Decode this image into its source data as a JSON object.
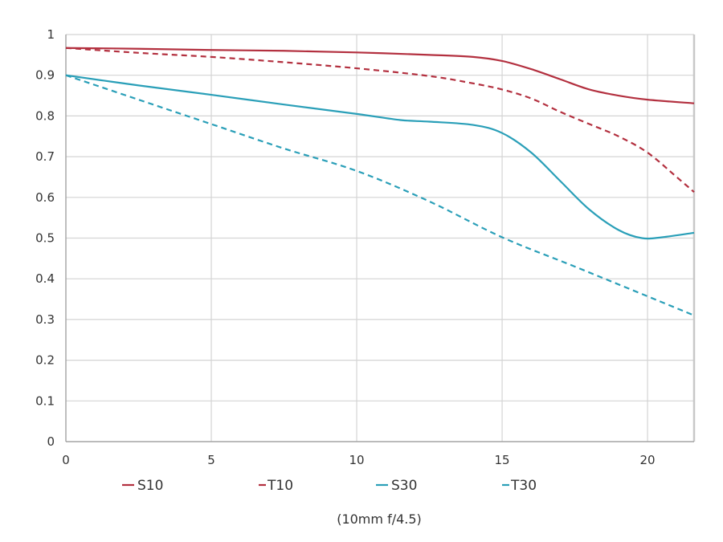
{
  "chart_data": {
    "type": "line",
    "title": "",
    "subtitle": "(10mm f/4.5)",
    "xlabel": "",
    "ylabel": "",
    "xlim": [
      0,
      21.6
    ],
    "ylim": [
      0,
      1
    ],
    "grid": true,
    "legend_position": "bottom",
    "xticks": [
      "0",
      "5",
      "10",
      "15",
      "20"
    ],
    "yticks": [
      "0",
      "0.1",
      "0.2",
      "0.3",
      "0.4",
      "0.5",
      "0.6",
      "0.7",
      "0.8",
      "0.9",
      "1"
    ],
    "series": [
      {
        "name": "S10",
        "color": "#b3303f",
        "dash": false,
        "x": [
          0,
          2.5,
          5,
          7.5,
          10,
          12.5,
          14,
          15,
          16,
          17,
          18,
          19,
          20,
          21.6
        ],
        "y": [
          0.967,
          0.965,
          0.962,
          0.96,
          0.956,
          0.95,
          0.945,
          0.935,
          0.915,
          0.89,
          0.865,
          0.85,
          0.84,
          0.831
        ]
      },
      {
        "name": "T10",
        "color": "#b3303f",
        "dash": true,
        "x": [
          0,
          2.5,
          5,
          7.5,
          10,
          12.5,
          14,
          15,
          16,
          17,
          18,
          19,
          20,
          21,
          21.6
        ],
        "y": [
          0.967,
          0.955,
          0.945,
          0.932,
          0.917,
          0.898,
          0.88,
          0.865,
          0.843,
          0.81,
          0.78,
          0.75,
          0.71,
          0.65,
          0.613
        ]
      },
      {
        "name": "S30",
        "color": "#2a9fb8",
        "dash": false,
        "x": [
          0,
          2.5,
          5,
          7.5,
          10,
          11.5,
          12.5,
          14,
          15,
          16,
          17,
          18,
          19,
          19.8,
          20.5,
          21.6
        ],
        "y": [
          0.9,
          0.875,
          0.852,
          0.828,
          0.805,
          0.79,
          0.786,
          0.778,
          0.758,
          0.71,
          0.64,
          0.57,
          0.52,
          0.5,
          0.502,
          0.513
        ]
      },
      {
        "name": "T30",
        "color": "#2a9fb8",
        "dash": true,
        "x": [
          0,
          2.5,
          5,
          7.5,
          10,
          12.5,
          15,
          17.5,
          20,
          21.6
        ],
        "y": [
          0.9,
          0.84,
          0.78,
          0.72,
          0.665,
          0.59,
          0.502,
          0.43,
          0.357,
          0.31
        ]
      }
    ]
  }
}
